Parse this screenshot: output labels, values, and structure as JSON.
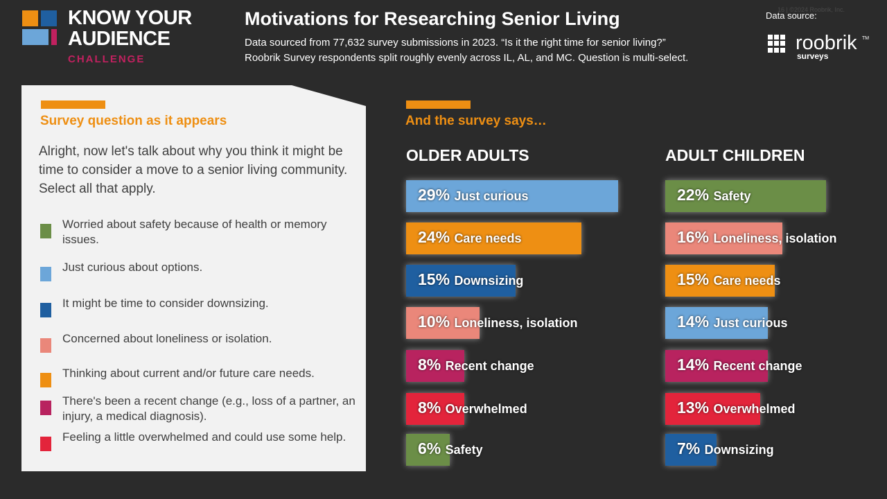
{
  "brand": {
    "title_line1": "KNOW YOUR",
    "title_line2": "AUDIENCE",
    "subtitle": "CHALLENGE",
    "logo_colors": [
      "#ee8f13",
      "#1f5fa0",
      "#6ca6d9",
      "#c1215f"
    ]
  },
  "header": {
    "title": "Motivations for Researching Senior Living",
    "subtitle_line1": "Data sourced from 77,632 survey submissions in 2023. “Is it the right time for senior living?”",
    "subtitle_line2": "Roobrik Survey respondents split roughly evenly across IL, AL, and MC. Question is multi-select.",
    "source_label": "Data source:",
    "page_meta": "16   |   ©2024 Roobrik, Inc.",
    "source_logo_name": "roobrik",
    "source_logo_tm": "TM",
    "source_logo_sub": "surveys"
  },
  "survey": {
    "heading": "Survey question as it appears",
    "question": "Alright, now let's talk about why you think it might be time to consider a move to a senior living community. Select all that apply.",
    "options": [
      {
        "text": "Worried about safety because of health or memory issues.",
        "color": "#6b8e47"
      },
      {
        "text": "Just curious about options.",
        "color": "#6ca6d9"
      },
      {
        "text": "It might be time to consider downsizing.",
        "color": "#1f5fa0"
      },
      {
        "text": "Concerned about loneliness or isolation.",
        "color": "#ea877a"
      },
      {
        "text": "Thinking about current and/or future care needs.",
        "color": "#ee8f13"
      },
      {
        "text": "There's been a recent change (e.g., loss of a partner, an injury, a medical diagnosis).",
        "color": "#b8235f"
      },
      {
        "text": "Feeling a little overwhelmed and could use some help.",
        "color": "#e3243b"
      }
    ]
  },
  "results": {
    "heading": "And the survey says…"
  },
  "colors": {
    "Safety": "#6b8e47",
    "Just curious": "#6ca6d9",
    "Downsizing": "#1f5fa0",
    "Loneliness": "#ea877a",
    "Care needs": "#ee8f13",
    "Recent change": "#b8235f",
    "Overwhelmed": "#e3243b"
  },
  "chart_data": [
    {
      "type": "bar",
      "title": "OLDER ADULTS",
      "unit": "%",
      "bars": [
        {
          "label": "Just curious",
          "display_label": "Just curious",
          "value": 29
        },
        {
          "label": "Care needs",
          "display_label": "Care needs",
          "value": 24
        },
        {
          "label": "Downsizing",
          "display_label": "Downsizing",
          "value": 15
        },
        {
          "label": "Loneliness",
          "display_label": "Loneliness,  isolation",
          "value": 10
        },
        {
          "label": "Recent change",
          "display_label": "Recent change",
          "value": 8
        },
        {
          "label": "Overwhelmed",
          "display_label": "Overwhelmed",
          "value": 8
        },
        {
          "label": "Safety",
          "display_label": "Safety",
          "value": 6
        }
      ]
    },
    {
      "type": "bar",
      "title": "ADULT CHILDREN",
      "unit": "%",
      "bars": [
        {
          "label": "Safety",
          "display_label": "Safety",
          "value": 22
        },
        {
          "label": "Loneliness",
          "display_label": "Loneliness, isolation",
          "value": 16
        },
        {
          "label": "Care needs",
          "display_label": "Care needs",
          "value": 15
        },
        {
          "label": "Just curious",
          "display_label": "Just curious",
          "value": 14
        },
        {
          "label": "Recent change",
          "display_label": "Recent change",
          "value": 14
        },
        {
          "label": "Overwhelmed",
          "display_label": "Overwhelmed",
          "value": 13
        },
        {
          "label": "Downsizing",
          "display_label": "Downsizing",
          "value": 7
        }
      ]
    }
  ]
}
